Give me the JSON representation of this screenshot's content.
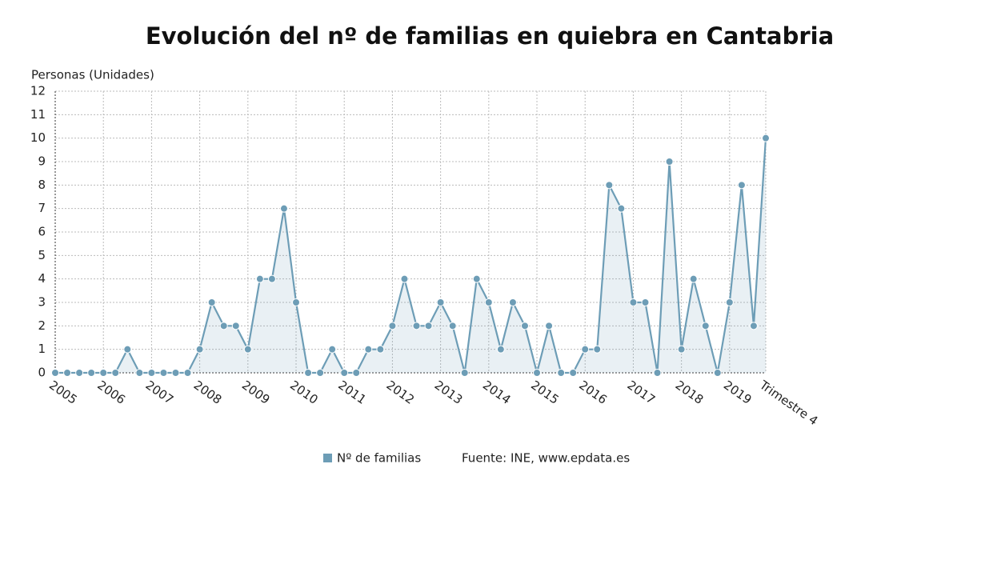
{
  "chart_data": {
    "type": "line",
    "title": "Evolución del nº de familias en quiebra en Cantabria",
    "y_label": "Personas (Unidades)",
    "source": "Fuente: INE, www.epdata.es",
    "categories": [
      "2005",
      null,
      null,
      null,
      "2006",
      null,
      null,
      null,
      "2007",
      null,
      null,
      null,
      "2008",
      null,
      null,
      null,
      "2009",
      null,
      null,
      null,
      "2010",
      null,
      null,
      null,
      "2011",
      null,
      null,
      null,
      "2012",
      null,
      null,
      null,
      "2013",
      null,
      null,
      null,
      "2014",
      null,
      null,
      null,
      "2015",
      null,
      null,
      null,
      "2016",
      null,
      null,
      null,
      "2017",
      null,
      null,
      null,
      "2018",
      null,
      null,
      null,
      "2019",
      null,
      null,
      "Trimestre 4"
    ],
    "series": [
      {
        "name": "Nº de familias",
        "color": "#6d9db6",
        "values": [
          0,
          0,
          0,
          0,
          0,
          0,
          1,
          0,
          0,
          0,
          0,
          0,
          1,
          3,
          2,
          2,
          1,
          4,
          4,
          7,
          3,
          0,
          0,
          1,
          0,
          0,
          1,
          1,
          2,
          4,
          2,
          2,
          3,
          2,
          0,
          4,
          3,
          1,
          3,
          2,
          0,
          2,
          0,
          0,
          1,
          1,
          8,
          7,
          3,
          3,
          0,
          9,
          1,
          4,
          2,
          0,
          3,
          8,
          2,
          10
        ]
      }
    ],
    "ylim": [
      0,
      12
    ],
    "yticks": [
      0,
      1,
      2,
      3,
      4,
      5,
      6,
      7,
      8,
      9,
      10,
      11,
      12
    ],
    "grid": true
  }
}
